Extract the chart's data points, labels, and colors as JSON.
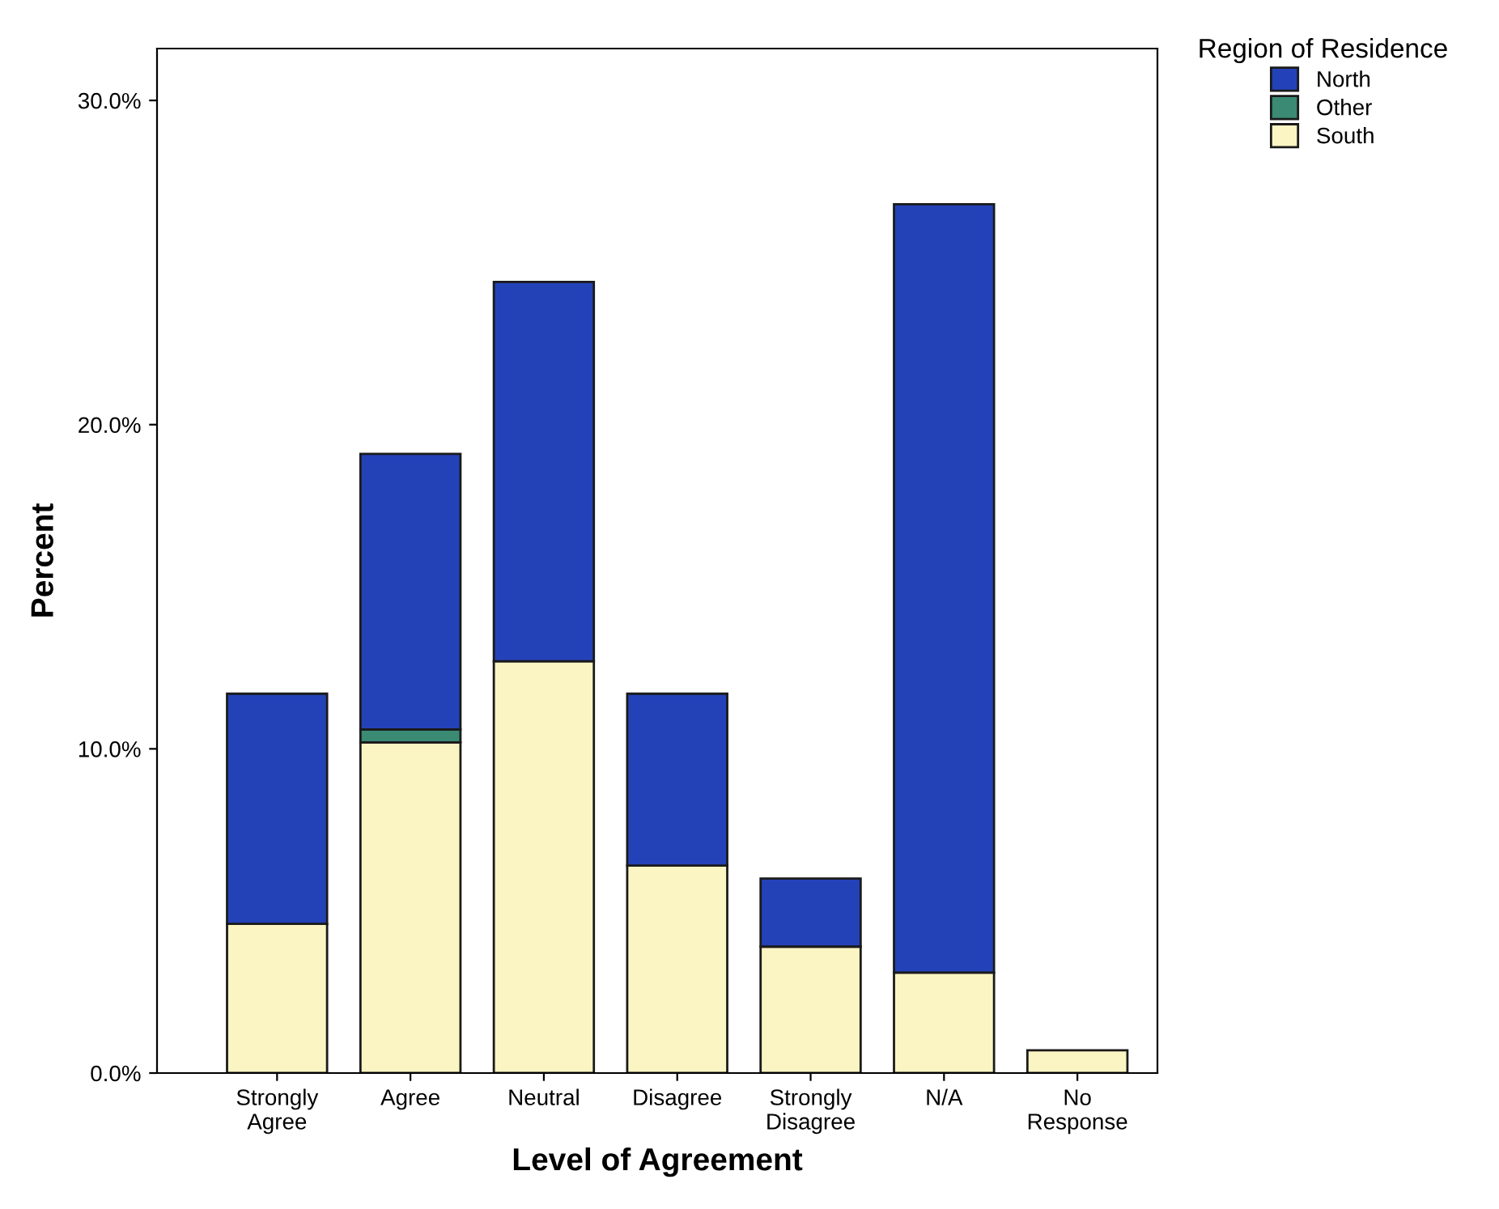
{
  "chart_data": {
    "type": "bar",
    "xlabel": "Level of Agreement",
    "ylabel": "Percent",
    "legend_title": "Region of Residence",
    "categories": [
      "Strongly\nAgree",
      "Agree",
      "Neutral",
      "Disagree",
      "Strongly\nDisagree",
      "N/A",
      "No\nResponse"
    ],
    "stacked": true,
    "series": [
      {
        "name": "South",
        "color": "#fbf5c3",
        "values": [
          4.6,
          10.2,
          12.7,
          6.4,
          3.9,
          3.1,
          0.7
        ]
      },
      {
        "name": "Other",
        "color": "#3b8a74",
        "values": [
          0,
          0.4,
          0,
          0,
          0,
          0,
          0
        ]
      },
      {
        "name": "North",
        "color": "#2442b8",
        "values": [
          7.1,
          8.5,
          11.7,
          5.3,
          2.1,
          23.7,
          0
        ]
      }
    ],
    "ylim": [
      0,
      31.6
    ],
    "yticks": [
      {
        "value": 0,
        "label": "0.0%"
      },
      {
        "value": 10,
        "label": "10.0%"
      },
      {
        "value": 20,
        "label": "20.0%"
      },
      {
        "value": 30,
        "label": "30.0%"
      }
    ],
    "grid": false,
    "legend": "top right"
  }
}
